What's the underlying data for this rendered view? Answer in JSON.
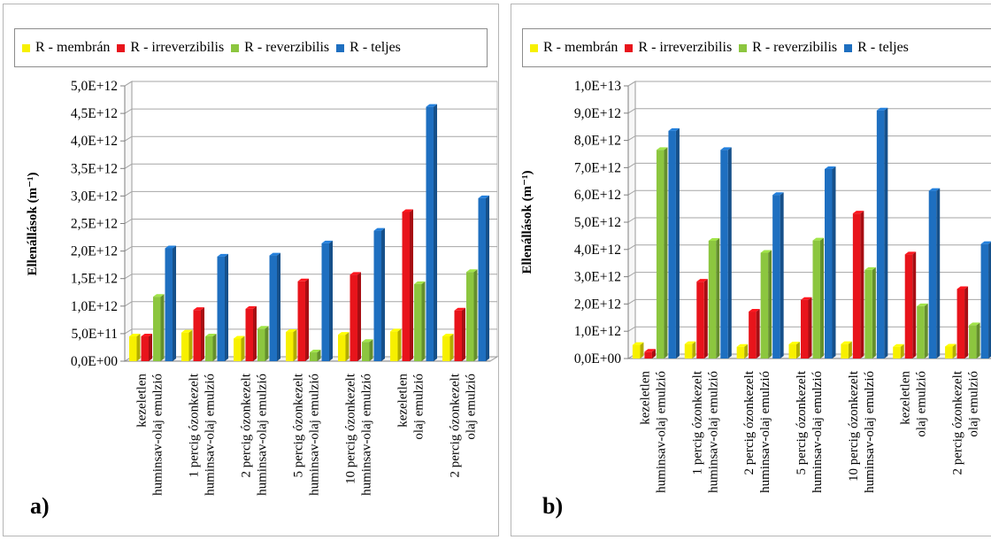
{
  "colors": {
    "membran": "#f7f000",
    "irreverzibilis": "#e8141b",
    "reverzibilis": "#8cc63f",
    "teljes": "#1e6fc0"
  },
  "legend": [
    {
      "key": "membran",
      "label": "R - membrán",
      "icon": "legend-swatch"
    },
    {
      "key": "irreverzibilis",
      "label": "R - irreverzibilis",
      "icon": "legend-swatch"
    },
    {
      "key": "reverzibilis",
      "label": "R - reverzibilis",
      "icon": "legend-swatch"
    },
    {
      "key": "teljes",
      "label": "R - teljes",
      "icon": "legend-swatch"
    }
  ],
  "panels": [
    {
      "label": "a)"
    },
    {
      "label": "b)"
    }
  ],
  "chart_data": [
    {
      "type": "bar",
      "ylabel": "Ellenállások (m⁻¹)",
      "ylim": [
        0,
        5000000000000.0
      ],
      "yticks": [
        0,
        500000000000.0,
        1000000000000.0,
        1500000000000.0,
        2000000000000.0,
        2500000000000.0,
        3000000000000.0,
        3500000000000.0,
        4000000000000.0,
        4500000000000.0,
        5000000000000.0
      ],
      "ytick_labels": [
        "0,0E+00",
        "5,0E+11",
        "1,0E+12",
        "1,5E+12",
        "2,0E+12",
        "2,5E+12",
        "3,0E+12",
        "3,5E+12",
        "4,0E+12",
        "4,5E+12",
        "5,0E+12"
      ],
      "grid": true,
      "legend_position": "top",
      "categories": [
        [
          "kezeletlen",
          "huminsav-olaj emulzió"
        ],
        [
          "1 percig ózonkezelt",
          "huminsav-olaj emulzió"
        ],
        [
          "2 percig ózonkezelt",
          "huminsav-olaj emulzió"
        ],
        [
          "5 percig ózonkezelt",
          "huminsav-olaj emulzió"
        ],
        [
          "10 percig ózonkezelt",
          "huminsav-olaj emulzió"
        ],
        [
          "kezeletlen",
          "olaj emulzió"
        ],
        [
          "2 percig ózonkezelt",
          "olaj emulzió"
        ]
      ],
      "series": [
        {
          "name": "R - membrán",
          "key": "membran",
          "values": [
            450000000000.0,
            520000000000.0,
            410000000000.0,
            530000000000.0,
            480000000000.0,
            540000000000.0,
            450000000000.0
          ]
        },
        {
          "name": "R - irreverzibilis",
          "key": "irreverzibilis",
          "values": [
            450000000000.0,
            930000000000.0,
            950000000000.0,
            1450000000000.0,
            1570000000000.0,
            2710000000000.0,
            920000000000.0
          ]
        },
        {
          "name": "R - reverzibilis",
          "key": "reverzibilis",
          "values": [
            1170000000000.0,
            450000000000.0,
            590000000000.0,
            160000000000.0,
            350000000000.0,
            1400000000000.0,
            1620000000000.0
          ]
        },
        {
          "name": "R - teljes",
          "key": "teljes",
          "values": [
            2050000000000.0,
            1900000000000.0,
            1920000000000.0,
            2140000000000.0,
            2370000000000.0,
            4620000000000.0,
            2960000000000.0
          ]
        }
      ]
    },
    {
      "type": "bar",
      "ylabel": "Ellenállások (m⁻¹)",
      "ylim": [
        0,
        10000000000000.0
      ],
      "yticks": [
        0,
        1000000000000.0,
        2000000000000.0,
        3000000000000.0,
        4000000000000.0,
        5000000000000.0,
        6000000000000.0,
        7000000000000.0,
        8000000000000.0,
        9000000000000.0,
        10000000000000.0
      ],
      "ytick_labels": [
        "0,0E+00",
        "1,0E+12",
        "2,0E+12",
        "3,0E+12",
        "4,0E+12",
        "5,0E+12",
        "6,0E+12",
        "7,0E+12",
        "8,0E+12",
        "9,0E+12",
        "1,0E+13"
      ],
      "grid": true,
      "legend_position": "top",
      "categories": [
        [
          "kezeletlen",
          "huminsav-olaj emulzió"
        ],
        [
          "1 percig ózonkezelt",
          "huminsav-olaj emulzió"
        ],
        [
          "2 percig ózonkezelt",
          "huminsav-olaj emulzió"
        ],
        [
          "5 percig ózonkezelt",
          "huminsav-olaj emulzió"
        ],
        [
          "10 percig ózonkezelt",
          "huminsav-olaj emulzió"
        ],
        [
          "kezeletlen",
          "olaj emulzió"
        ],
        [
          "2 percig ózonkezelt",
          "olaj emulzió"
        ]
      ],
      "series": [
        {
          "name": "R - membrán",
          "key": "membran",
          "values": [
            500000000000.0,
            530000000000.0,
            430000000000.0,
            520000000000.0,
            530000000000.0,
            430000000000.0,
            440000000000.0
          ]
        },
        {
          "name": "R - irreverzibilis",
          "key": "irreverzibilis",
          "values": [
            250000000000.0,
            2820000000000.0,
            1720000000000.0,
            2150000000000.0,
            5320000000000.0,
            3820000000000.0,
            2550000000000.0
          ]
        },
        {
          "name": "R - reverzibilis",
          "key": "reverzibilis",
          "values": [
            7650000000000.0,
            4320000000000.0,
            3880000000000.0,
            4330000000000.0,
            3250000000000.0,
            1920000000000.0,
            1220000000000.0
          ]
        },
        {
          "name": "R - teljes",
          "key": "teljes",
          "values": [
            8350000000000.0,
            7650000000000.0,
            6000000000000.0,
            6950000000000.0,
            9100000000000.0,
            6150000000000.0,
            4200000000000.0
          ]
        }
      ]
    }
  ]
}
